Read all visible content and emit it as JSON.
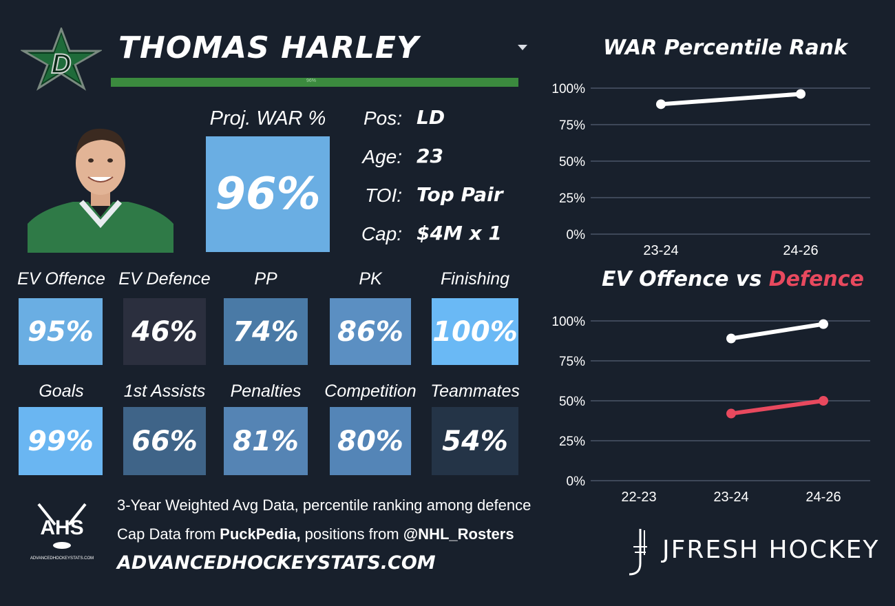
{
  "player": {
    "name": "THOMAS HARLEY",
    "proj_war_label": "Proj. WAR %",
    "proj_war_value": "96%",
    "war_bar_label": "96%",
    "bio": [
      {
        "label": "Pos:",
        "value": "LD"
      },
      {
        "label": "Age:",
        "value": "23"
      },
      {
        "label": "TOI:",
        "value": "Top Pair"
      },
      {
        "label": "Cap:",
        "value": "$4M x 1"
      }
    ]
  },
  "tiles_row1": [
    {
      "label": "EV Offence",
      "value": "95%",
      "color": "#6aaee3"
    },
    {
      "label": "EV Defence",
      "value": "46%",
      "color": "#2b2f3e"
    },
    {
      "label": "PP",
      "value": "74%",
      "color": "#4a7aa6"
    },
    {
      "label": "PK",
      "value": "86%",
      "color": "#5b8fc2"
    },
    {
      "label": "Finishing",
      "value": "100%",
      "color": "#6ab9f5"
    }
  ],
  "tiles_row2": [
    {
      "label": "Goals",
      "value": "99%",
      "color": "#6ab6f2"
    },
    {
      "label": "1st Assists",
      "value": "66%",
      "color": "#3f6488"
    },
    {
      "label": "Penalties",
      "value": "81%",
      "color": "#5584b4"
    },
    {
      "label": "Competition",
      "value": "80%",
      "color": "#5485b7"
    },
    {
      "label": "Teammates",
      "value": "54%",
      "color": "#243447"
    }
  ],
  "footer": {
    "line1": "3-Year Weighted Avg Data, percentile ranking among defence",
    "line2_prefix": "Cap Data from ",
    "line2_bold1": "PuckPedia,",
    "line2_mid": " positions from ",
    "line2_bold2": "@NHL_Rosters",
    "url": "ADVANCEDHOCKEYSTATS.COM",
    "ahs_logo_text": "AHS",
    "ahs_logo_sub": "ADVANCEDHOCKEYSTATS.COM",
    "brand": "JFRESH HOCKEY"
  },
  "colors": {
    "background": "#18202c",
    "team_green": "#3b8a3e",
    "defence_red": "#e8495e",
    "offence_white": "#ffffff",
    "grid": "#4a5568"
  },
  "icons": {
    "team_logo": "dallas-stars-logo",
    "dropdown": "caret-down-icon",
    "ahs_logo": "ahs-logo",
    "jfresh": "jfresh-logo"
  },
  "chart_data": [
    {
      "type": "line",
      "title": "WAR Percentile Rank",
      "categories": [
        "23-24",
        "24-26"
      ],
      "y_ticks": [
        "100%",
        "75%",
        "50%",
        "25%",
        "0%"
      ],
      "ylim": [
        0,
        100
      ],
      "grid": true,
      "series": [
        {
          "values": [
            89,
            96
          ],
          "color": "#ffffff"
        }
      ]
    },
    {
      "type": "line",
      "title_part1": "EV Offence vs ",
      "title_part2": "Defence",
      "categories": [
        "22-23",
        "23-24",
        "24-26"
      ],
      "y_ticks": [
        "100%",
        "75%",
        "50%",
        "25%",
        "0%"
      ],
      "ylim": [
        0,
        100
      ],
      "grid": true,
      "series": [
        {
          "values": [
            null,
            89,
            98
          ],
          "color": "#ffffff"
        },
        {
          "values": [
            null,
            42,
            50
          ],
          "color": "#e8495e"
        }
      ]
    }
  ]
}
